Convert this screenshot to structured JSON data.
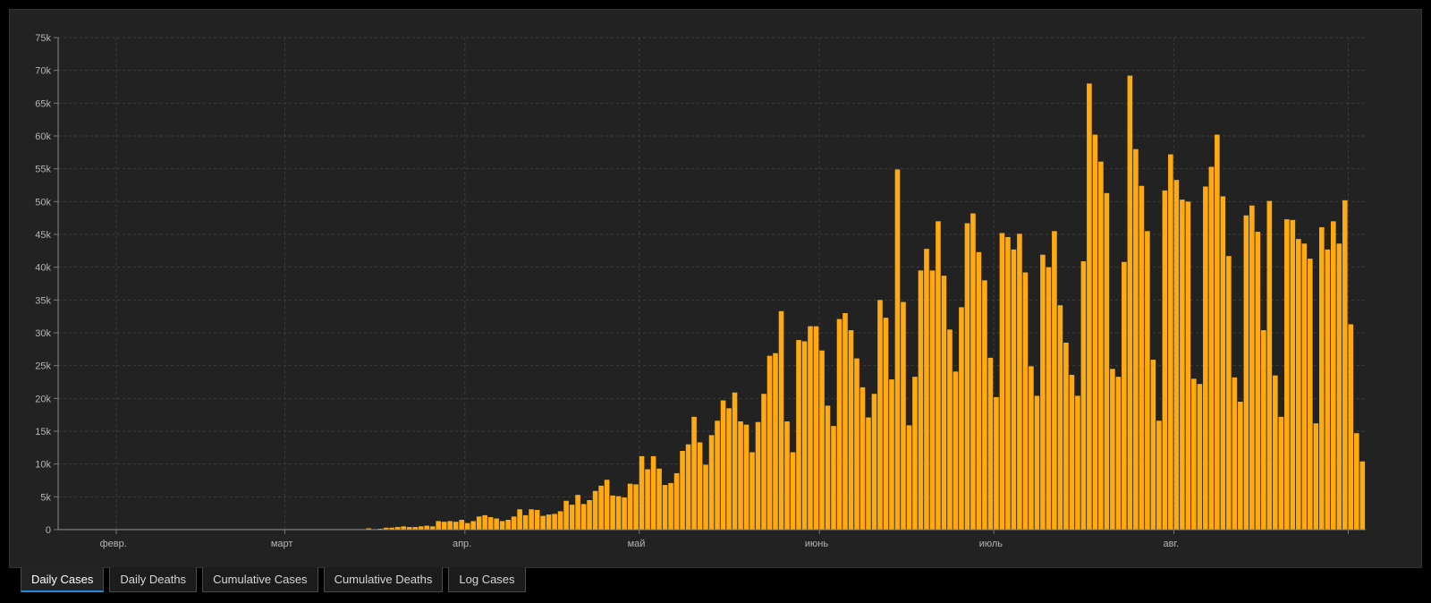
{
  "tabs": [
    {
      "label": "Daily Cases",
      "active": true
    },
    {
      "label": "Daily Deaths",
      "active": false
    },
    {
      "label": "Cumulative Cases",
      "active": false
    },
    {
      "label": "Cumulative Deaths",
      "active": false
    },
    {
      "label": "Log Cases",
      "active": false
    }
  ],
  "colors": {
    "bar": "#FFAA0F",
    "background": "#222222",
    "grid": "#3d3d3d",
    "active_tab_underline": "#1d8ce0"
  },
  "chart_data": {
    "type": "bar",
    "title": "",
    "xlabel": "",
    "ylabel": "",
    "ylim": [
      0,
      75000
    ],
    "grid": true,
    "y_ticks": [
      0,
      5000,
      10000,
      15000,
      20000,
      25000,
      30000,
      35000,
      40000,
      45000,
      50000,
      55000,
      60000,
      65000,
      70000,
      75000
    ],
    "y_tick_labels": [
      "0",
      "5k",
      "10k",
      "15k",
      "20k",
      "25k",
      "30k",
      "35k",
      "40k",
      "45k",
      "50k",
      "55k",
      "60k",
      "65k",
      "70k",
      "75k"
    ],
    "x_tick_labels": [
      {
        "label": "февр.",
        "day_index": 9
      },
      {
        "label": "март",
        "day_index": 38
      },
      {
        "label": "апр.",
        "day_index": 69
      },
      {
        "label": "май",
        "day_index": 99
      },
      {
        "label": "июнь",
        "day_index": 130
      },
      {
        "label": "июль",
        "day_index": 160
      },
      {
        "label": "авг.",
        "day_index": 191
      }
    ],
    "x_grid_day_indices": [
      10,
      39,
      70,
      100,
      131,
      161,
      192,
      222
    ],
    "values": [
      0,
      0,
      0,
      0,
      0,
      0,
      0,
      0,
      0,
      0,
      0,
      0,
      0,
      0,
      0,
      0,
      0,
      0,
      0,
      0,
      0,
      0,
      0,
      0,
      0,
      0,
      0,
      0,
      0,
      0,
      0,
      0,
      0,
      0,
      0,
      0,
      0,
      0,
      0,
      0,
      0,
      0,
      0,
      0,
      0,
      0,
      0,
      0,
      0,
      0,
      0,
      0,
      0,
      200,
      0,
      100,
      300,
      300,
      400,
      500,
      400,
      400,
      500,
      600,
      500,
      1300,
      1200,
      1300,
      1200,
      1500,
      1000,
      1300,
      2000,
      2200,
      1900,
      1700,
      1300,
      1500,
      2000,
      3100,
      2200,
      3100,
      3000,
      2100,
      2300,
      2400,
      2800,
      4400,
      3800,
      5300,
      3900,
      4500,
      5900,
      6700,
      7600,
      5200,
      5100,
      4900,
      7000,
      6900,
      11200,
      9200,
      11200,
      9300,
      6800,
      7100,
      8600,
      12000,
      13000,
      17200,
      13300,
      9900,
      14400,
      16600,
      19700,
      18500,
      20900,
      16500,
      16000,
      11800,
      16400,
      20700,
      26500,
      26900,
      33300,
      16500,
      11800,
      28900,
      28700,
      31000,
      31000,
      27300,
      18900,
      15800,
      32100,
      33000,
      30400,
      26100,
      21700,
      17100,
      20700,
      35000,
      32300,
      22900,
      54900,
      34700,
      15900,
      23300,
      39500,
      42800,
      39500,
      47000,
      38700,
      30500,
      24100,
      33900,
      46700,
      48200,
      42300,
      38000,
      26200,
      20200,
      45200,
      44600,
      42700,
      45100,
      39200,
      24900,
      20400,
      41900,
      40000,
      45500,
      34200,
      28500,
      23600,
      20400,
      40900,
      68000,
      60200,
      56100,
      51300,
      24500,
      23300,
      40800,
      69200,
      58000,
      52400,
      45500,
      25900,
      16600,
      51700,
      57200,
      53300,
      50300,
      50000,
      23000,
      22200,
      52300,
      55300,
      60200,
      50800,
      41700,
      23200,
      19500,
      47900,
      49400,
      45400,
      30400,
      50100,
      23500,
      17200,
      47300,
      47200,
      44300,
      43600,
      41300,
      16200,
      46100,
      42700,
      47000,
      43600,
      50200,
      31300,
      14700,
      10400
    ]
  }
}
